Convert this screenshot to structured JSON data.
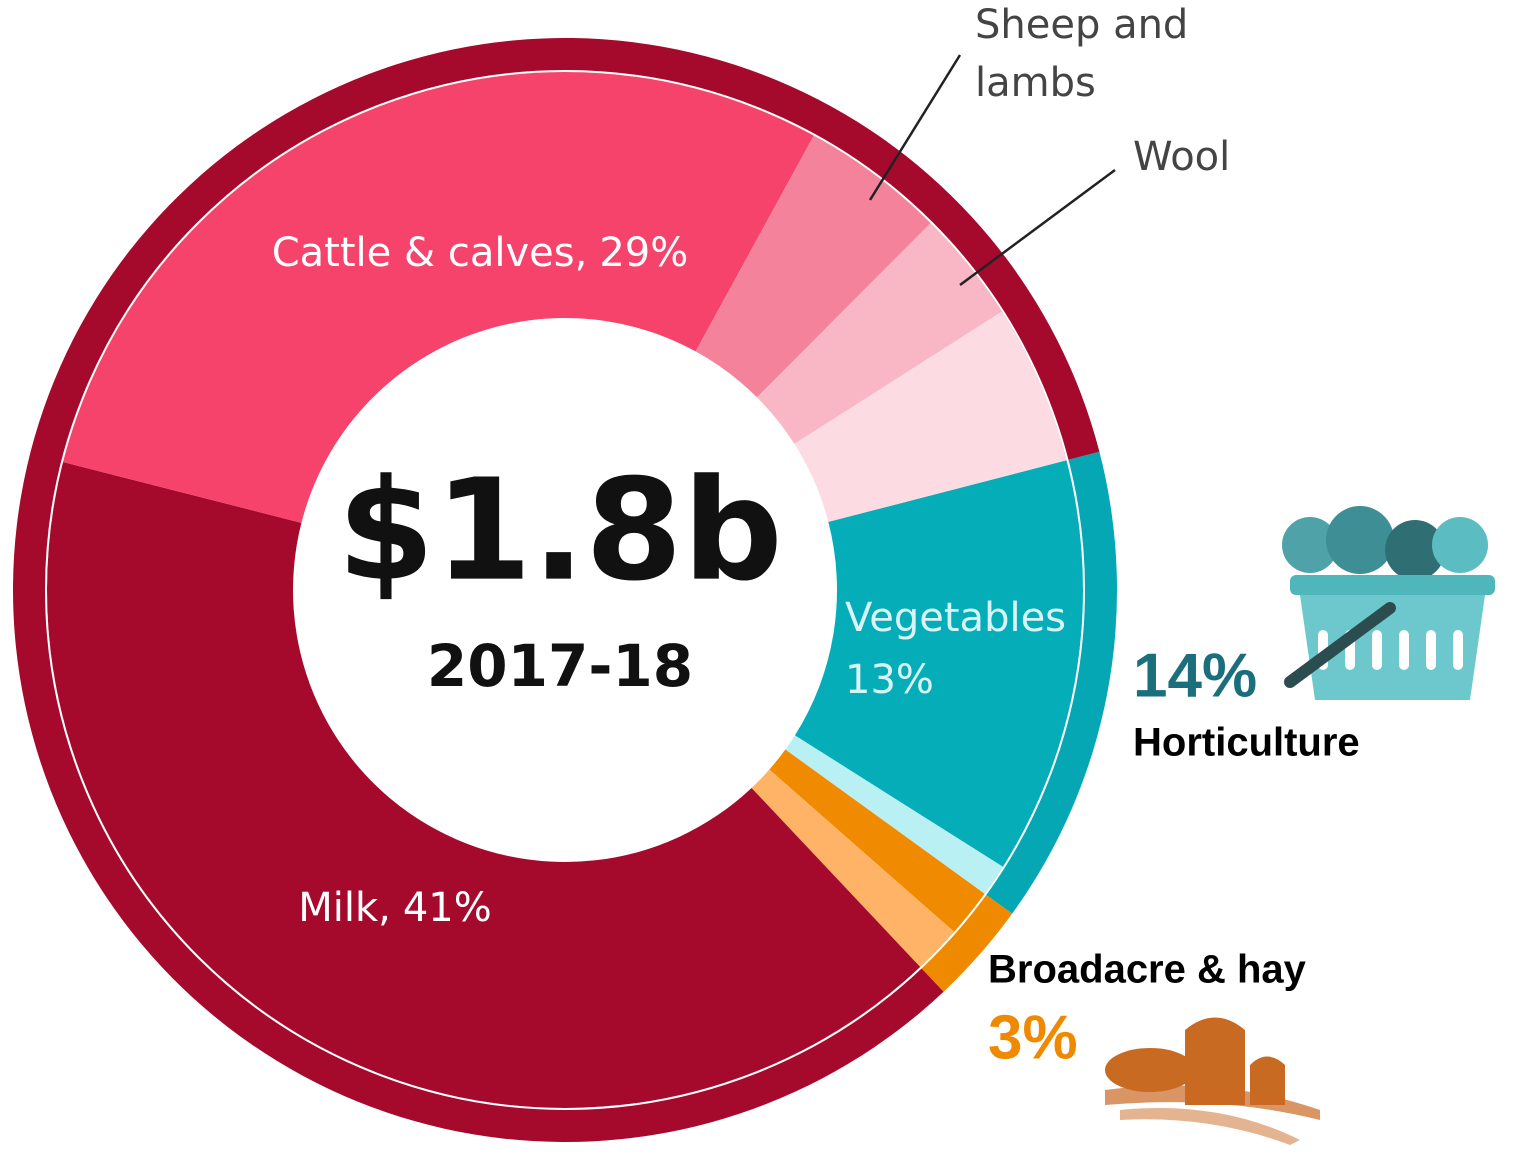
{
  "chart_data": {
    "type": "sunburst",
    "title": "$1.8b",
    "subtitle": "2017-18",
    "inner": {
      "categories": [
        "Vegetables",
        null,
        null,
        null,
        "Milk,",
        "Cattle & calves,",
        "Sheep and lambs",
        "Wool",
        null
      ],
      "values": [
        13,
        1,
        1.5,
        1.5,
        41,
        29,
        4.5,
        3.5,
        5
      ],
      "value_labels": [
        "13%",
        null,
        null,
        null,
        "41%",
        "29%",
        null,
        null,
        null
      ],
      "colors": [
        "#05adb9",
        "#b8f0f4",
        "#f08a00",
        "#ffb366",
        "#a50a2d",
        "#f5436b",
        "#f5829b",
        "#f9b7c6",
        "#fcdbe3"
      ]
    },
    "outer": {
      "categories": [
        "Horticulture",
        "Broadacre & hay",
        null
      ],
      "values": [
        14,
        3,
        83
      ],
      "value_labels": [
        "14%",
        "3%",
        null
      ],
      "colors": [
        "#05a7b5",
        "#ef8a00",
        "#a50a2d"
      ]
    }
  }
}
